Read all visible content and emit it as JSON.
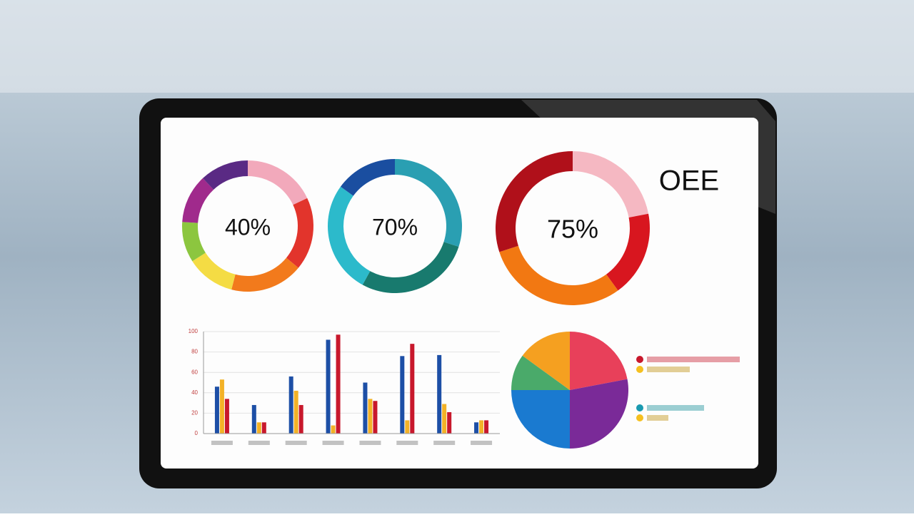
{
  "chart_data": [
    {
      "type": "donut",
      "label": "40%",
      "values": [
        18,
        18,
        18,
        12,
        10,
        12,
        12
      ],
      "colors": [
        "#f2a9bb",
        "#e2342c",
        "#f27a1c",
        "#f4dc44",
        "#8cc63f",
        "#a02a8c",
        "#5a2a84"
      ]
    },
    {
      "type": "donut",
      "label": "70%",
      "values": [
        30,
        28,
        27,
        15
      ],
      "colors": [
        "#2a9fb2",
        "#187a6e",
        "#2cbacb",
        "#1a4ea0"
      ]
    },
    {
      "type": "donut",
      "label": "75%",
      "values": [
        22,
        18,
        30,
        30
      ],
      "colors": [
        "#f5b8c2",
        "#d8161f",
        "#f27812",
        "#b0101a"
      ]
    },
    {
      "type": "text",
      "label": "OEE"
    },
    {
      "type": "bar",
      "categories": [
        null,
        null,
        null,
        null,
        null,
        null,
        null,
        null
      ],
      "series": [
        {
          "color": "#1d4fa6",
          "values": [
            46,
            28,
            56,
            92,
            50,
            76,
            77,
            11
          ]
        },
        {
          "color": "#f3b227",
          "values": [
            53,
            11,
            42,
            8,
            34,
            13,
            29,
            13
          ]
        },
        {
          "color": "#c8182c",
          "values": [
            34,
            11,
            28,
            97,
            32,
            88,
            21,
            13
          ]
        }
      ],
      "ylim": [
        0,
        100
      ],
      "yticks": [
        0,
        20,
        40,
        60,
        80,
        100
      ],
      "grid": true
    },
    {
      "type": "pie",
      "values": [
        22,
        28,
        25,
        10,
        15
      ],
      "colors": [
        "#e8405a",
        "#7a2a98",
        "#1a7ad0",
        "#4aaa6a",
        "#f5a020"
      ]
    }
  ]
}
